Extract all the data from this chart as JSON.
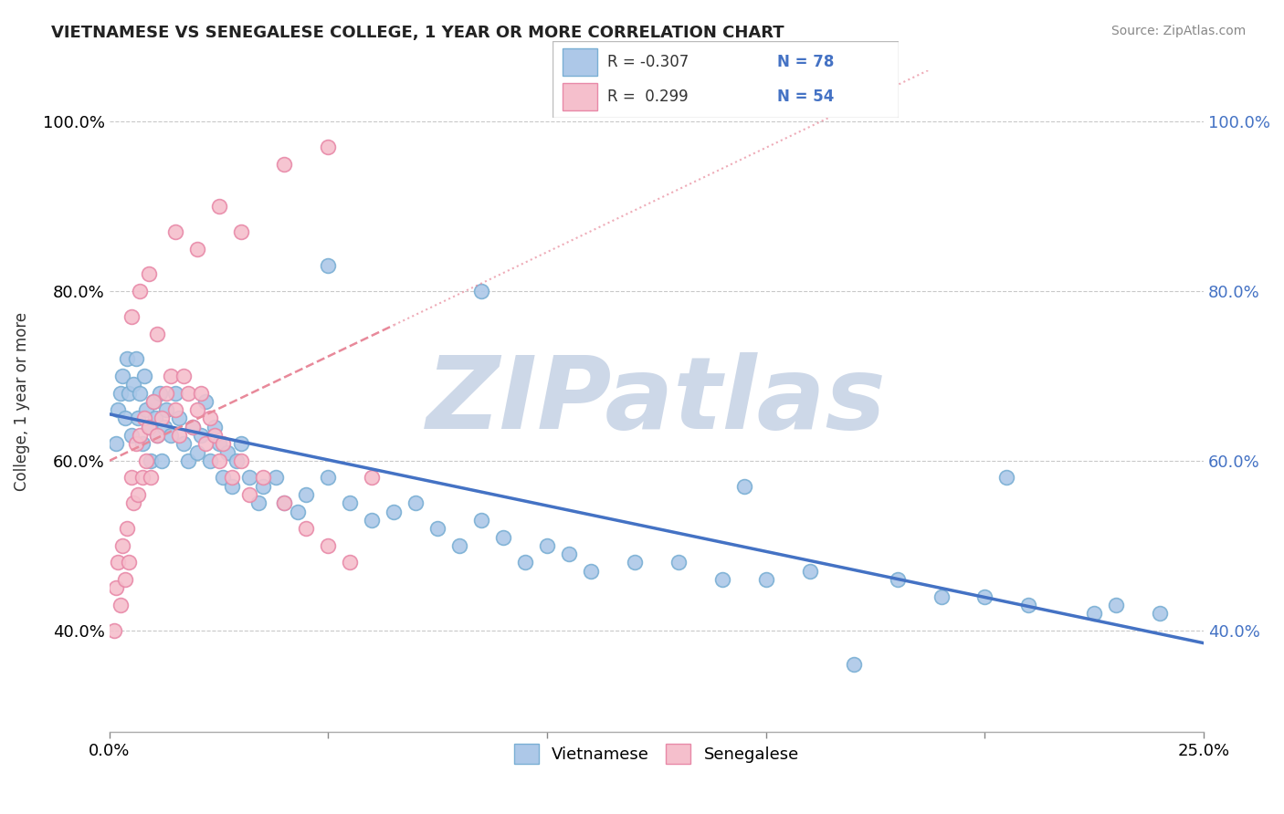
{
  "title": "VIETNAMESE VS SENEGALESE COLLEGE, 1 YEAR OR MORE CORRELATION CHART",
  "source_text": "Source: ZipAtlas.com",
  "ylabel": "College, 1 year or more",
  "x_tick_values": [
    0.0,
    5.0,
    10.0,
    15.0,
    20.0,
    25.0
  ],
  "y_tick_values": [
    40.0,
    60.0,
    80.0,
    100.0
  ],
  "xlim": [
    0.0,
    25.0
  ],
  "ylim": [
    28.0,
    106.0
  ],
  "legend_r1": "R = -0.307",
  "legend_n1": "N = 78",
  "legend_r2": "R =  0.299",
  "legend_n2": "N = 54",
  "viet_color": "#adc8e8",
  "viet_edge_color": "#7aafd4",
  "sene_color": "#f5bfcc",
  "sene_edge_color": "#e889a8",
  "trend_viet_color": "#4472c4",
  "trend_sene_color": "#e8899a",
  "watermark_color": "#cdd8e8",
  "watermark_text": "ZIPatlas",
  "background_color": "#ffffff",
  "viet_trend_x0": 0.0,
  "viet_trend_y0": 65.5,
  "viet_trend_x1": 25.0,
  "viet_trend_y1": 38.5,
  "sene_trend_x0": 0.0,
  "sene_trend_y0": 60.0,
  "sene_trend_x1": 6.5,
  "sene_trend_y1": 76.0,
  "viet_x": [
    0.15,
    0.2,
    0.25,
    0.3,
    0.35,
    0.4,
    0.45,
    0.5,
    0.55,
    0.6,
    0.65,
    0.7,
    0.75,
    0.8,
    0.85,
    0.9,
    0.95,
    1.0,
    1.05,
    1.1,
    1.15,
    1.2,
    1.25,
    1.3,
    1.4,
    1.5,
    1.6,
    1.7,
    1.8,
    1.9,
    2.0,
    2.1,
    2.2,
    2.3,
    2.4,
    2.5,
    2.6,
    2.7,
    2.8,
    2.9,
    3.0,
    3.2,
    3.4,
    3.5,
    3.8,
    4.0,
    4.3,
    4.5,
    5.0,
    5.5,
    6.0,
    6.5,
    7.0,
    7.5,
    8.0,
    8.5,
    9.0,
    9.5,
    10.0,
    10.5,
    11.0,
    12.0,
    13.0,
    14.0,
    15.0,
    16.0,
    17.0,
    18.0,
    19.0,
    20.0,
    21.0,
    22.5,
    23.0,
    24.0,
    5.0,
    8.5,
    14.5,
    20.5
  ],
  "viet_y": [
    62,
    66,
    68,
    70,
    65,
    72,
    68,
    63,
    69,
    72,
    65,
    68,
    62,
    70,
    66,
    64,
    60,
    67,
    65,
    63,
    68,
    60,
    64,
    66,
    63,
    68,
    65,
    62,
    60,
    64,
    61,
    63,
    67,
    60,
    64,
    62,
    58,
    61,
    57,
    60,
    62,
    58,
    55,
    57,
    58,
    55,
    54,
    56,
    58,
    55,
    53,
    54,
    55,
    52,
    50,
    53,
    51,
    48,
    50,
    49,
    47,
    48,
    48,
    46,
    46,
    47,
    36,
    46,
    44,
    44,
    43,
    42,
    43,
    42,
    83,
    80,
    57,
    58
  ],
  "sene_x": [
    0.1,
    0.15,
    0.2,
    0.25,
    0.3,
    0.35,
    0.4,
    0.45,
    0.5,
    0.55,
    0.6,
    0.65,
    0.7,
    0.75,
    0.8,
    0.85,
    0.9,
    0.95,
    1.0,
    1.1,
    1.2,
    1.3,
    1.4,
    1.5,
    1.6,
    1.7,
    1.8,
    1.9,
    2.0,
    2.1,
    2.2,
    2.3,
    2.4,
    2.5,
    2.6,
    2.8,
    3.0,
    3.2,
    3.5,
    4.0,
    4.5,
    5.0,
    5.5,
    6.0,
    0.5,
    0.7,
    0.9,
    1.1,
    1.5,
    2.0,
    2.5,
    3.0,
    4.0,
    5.0
  ],
  "sene_y": [
    40,
    45,
    48,
    43,
    50,
    46,
    52,
    48,
    58,
    55,
    62,
    56,
    63,
    58,
    65,
    60,
    64,
    58,
    67,
    63,
    65,
    68,
    70,
    66,
    63,
    70,
    68,
    64,
    66,
    68,
    62,
    65,
    63,
    60,
    62,
    58,
    60,
    56,
    58,
    55,
    52,
    50,
    48,
    58,
    77,
    80,
    82,
    75,
    87,
    85,
    90,
    87,
    95,
    97
  ]
}
